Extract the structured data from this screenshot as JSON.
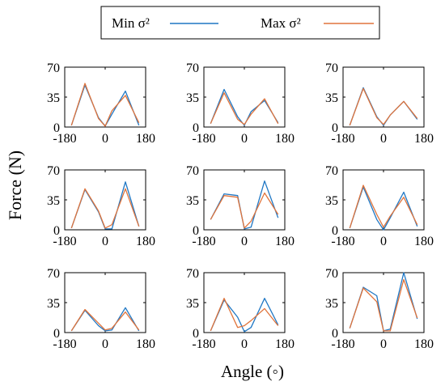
{
  "figure": {
    "xlabel": "Angle (◦)",
    "ylabel": "Force (N)",
    "legend": {
      "placement": "top-center",
      "entries": [
        {
          "label": "Min σ²",
          "color": "#1f77c4"
        },
        {
          "label": "Max σ²",
          "color": "#e0743c"
        }
      ]
    },
    "colors": {
      "axes": "#000000",
      "background": "#ffffff"
    }
  },
  "chart_data": [
    {
      "type": "line",
      "x": [
        -150,
        -90,
        -30,
        0,
        30,
        90,
        150
      ],
      "xlim": [
        -180,
        180
      ],
      "ylim": [
        0,
        70
      ],
      "xticks": [
        "-180",
        "0",
        "180"
      ],
      "yticks": [
        "0",
        "35",
        "70"
      ],
      "grid": false,
      "series": [
        {
          "name": "Min σ²",
          "color": "#1f77c4",
          "values": [
            2,
            49,
            11,
            1,
            15,
            42,
            2
          ]
        },
        {
          "name": "Max σ²",
          "color": "#e0743c",
          "values": [
            2,
            51,
            10,
            1,
            19,
            37,
            5
          ]
        }
      ]
    },
    {
      "type": "line",
      "x": [
        -150,
        -90,
        -30,
        0,
        30,
        90,
        150
      ],
      "xlim": [
        -180,
        180
      ],
      "ylim": [
        0,
        70
      ],
      "xticks": [
        "-180",
        "0",
        "180"
      ],
      "yticks": [
        "0",
        "35",
        "70"
      ],
      "grid": false,
      "series": [
        {
          "name": "Min σ²",
          "color": "#1f77c4",
          "values": [
            4,
            44,
            12,
            2,
            18,
            31,
            5
          ]
        },
        {
          "name": "Max σ²",
          "color": "#e0743c",
          "values": [
            4,
            40,
            9,
            3,
            15,
            33,
            4
          ]
        }
      ]
    },
    {
      "type": "line",
      "x": [
        -150,
        -90,
        -30,
        0,
        30,
        90,
        150
      ],
      "xlim": [
        -180,
        180
      ],
      "ylim": [
        0,
        70
      ],
      "xticks": [
        "-180",
        "0",
        "180"
      ],
      "yticks": [
        "0",
        "35",
        "70"
      ],
      "grid": false,
      "series": [
        {
          "name": "Min σ²",
          "color": "#1f77c4",
          "values": [
            2,
            46,
            12,
            2,
            14,
            30,
            9
          ]
        },
        {
          "name": "Max σ²",
          "color": "#e0743c",
          "values": [
            2,
            45,
            11,
            3,
            14,
            30,
            10
          ]
        }
      ]
    },
    {
      "type": "line",
      "x": [
        -150,
        -90,
        -30,
        0,
        30,
        90,
        150
      ],
      "xlim": [
        -180,
        180
      ],
      "ylim": [
        0,
        70
      ],
      "xticks": [
        "-180",
        "0",
        "180"
      ],
      "yticks": [
        "0",
        "35",
        "70"
      ],
      "grid": false,
      "series": [
        {
          "name": "Min σ²",
          "color": "#1f77c4",
          "values": [
            2,
            47,
            21,
            1,
            1,
            56,
            4
          ]
        },
        {
          "name": "Max σ²",
          "color": "#e0743c",
          "values": [
            2,
            48,
            22,
            2,
            6,
            48,
            4
          ]
        }
      ]
    },
    {
      "type": "line",
      "x": [
        -150,
        -90,
        -30,
        0,
        30,
        90,
        150
      ],
      "xlim": [
        -180,
        180
      ],
      "ylim": [
        0,
        70
      ],
      "xticks": [
        "-180",
        "0",
        "180"
      ],
      "yticks": [
        "0",
        "35",
        "70"
      ],
      "grid": false,
      "series": [
        {
          "name": "Min σ²",
          "color": "#1f77c4",
          "values": [
            12,
            42,
            40,
            1,
            3,
            57,
            14
          ]
        },
        {
          "name": "Max σ²",
          "color": "#e0743c",
          "values": [
            12,
            40,
            38,
            2,
            10,
            43,
            18
          ]
        }
      ]
    },
    {
      "type": "line",
      "x": [
        -150,
        -90,
        -30,
        0,
        30,
        90,
        150
      ],
      "xlim": [
        -180,
        180
      ],
      "ylim": [
        0,
        70
      ],
      "xticks": [
        "-180",
        "0",
        "180"
      ],
      "yticks": [
        "0",
        "35",
        "70"
      ],
      "grid": false,
      "series": [
        {
          "name": "Min σ²",
          "color": "#1f77c4",
          "values": [
            2,
            50,
            12,
            0,
            14,
            44,
            4
          ]
        },
        {
          "name": "Max σ²",
          "color": "#e0743c",
          "values": [
            2,
            52,
            18,
            3,
            16,
            38,
            6
          ]
        }
      ]
    },
    {
      "type": "line",
      "x": [
        -150,
        -90,
        -30,
        0,
        30,
        90,
        150
      ],
      "xlim": [
        -180,
        180
      ],
      "ylim": [
        0,
        70
      ],
      "xticks": [
        "-180",
        "0",
        "180"
      ],
      "yticks": [
        "0",
        "35",
        "70"
      ],
      "grid": false,
      "series": [
        {
          "name": "Min σ²",
          "color": "#1f77c4",
          "values": [
            2,
            26,
            8,
            2,
            3,
            29,
            2
          ]
        },
        {
          "name": "Max σ²",
          "color": "#e0743c",
          "values": [
            2,
            27,
            11,
            3,
            5,
            24,
            3
          ]
        }
      ]
    },
    {
      "type": "line",
      "x": [
        -150,
        -90,
        -30,
        0,
        30,
        90,
        150
      ],
      "xlim": [
        -180,
        180
      ],
      "ylim": [
        0,
        70
      ],
      "xticks": [
        "-180",
        "0",
        "180"
      ],
      "yticks": [
        "0",
        "35",
        "70"
      ],
      "grid": false,
      "series": [
        {
          "name": "Min σ²",
          "color": "#1f77c4",
          "values": [
            2,
            38,
            18,
            1,
            6,
            40,
            9
          ]
        },
        {
          "name": "Max σ²",
          "color": "#e0743c",
          "values": [
            2,
            40,
            6,
            8,
            14,
            28,
            8
          ]
        }
      ]
    },
    {
      "type": "line",
      "x": [
        -150,
        -90,
        -30,
        0,
        30,
        90,
        150
      ],
      "xlim": [
        -180,
        180
      ],
      "ylim": [
        0,
        70
      ],
      "xticks": [
        "-180",
        "0",
        "180"
      ],
      "yticks": [
        "0",
        "35",
        "70"
      ],
      "grid": false,
      "series": [
        {
          "name": "Min σ²",
          "color": "#1f77c4",
          "values": [
            5,
            53,
            43,
            2,
            4,
            70,
            16
          ]
        },
        {
          "name": "Max σ²",
          "color": "#e0743c",
          "values": [
            5,
            52,
            36,
            2,
            2,
            62,
            17
          ]
        }
      ]
    }
  ]
}
